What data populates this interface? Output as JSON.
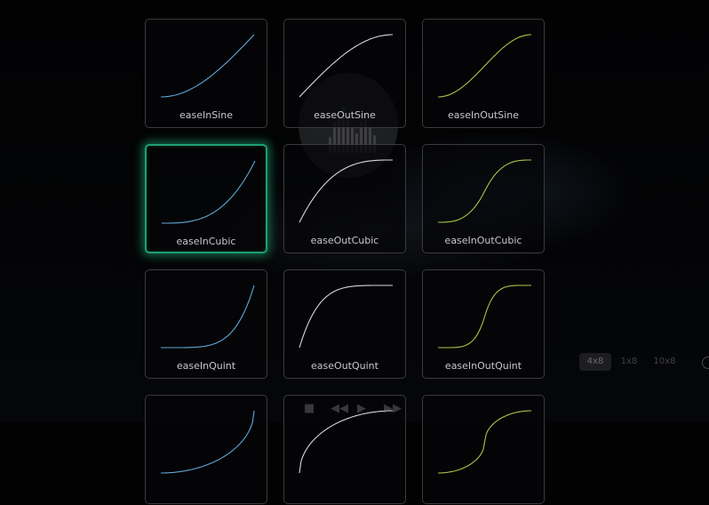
{
  "easing_grid": {
    "rows": [
      [
        {
          "label": "easeInSine",
          "curve": "easeInSine",
          "color": "#5fa8d8"
        },
        {
          "label": "easeOutSine",
          "curve": "easeOutSine",
          "color": "#d8d8dc"
        },
        {
          "label": "easeInOutSine",
          "curve": "easeInOutSine",
          "color": "#a9c548"
        }
      ],
      [
        {
          "label": "easeInCubic",
          "curve": "easeInCubic",
          "color": "#5fa8d8",
          "selected": true
        },
        {
          "label": "easeOutCubic",
          "curve": "easeOutCubic",
          "color": "#d8d8dc"
        },
        {
          "label": "easeInOutCubic",
          "curve": "easeInOutCubic",
          "color": "#a9c548"
        }
      ],
      [
        {
          "label": "easeInQuint",
          "curve": "easeInQuint",
          "color": "#5fa8d8"
        },
        {
          "label": "easeOutQuint",
          "curve": "easeOutQuint",
          "color": "#d8d8dc"
        },
        {
          "label": "easeInOutQuint",
          "curve": "easeInOutQuint",
          "color": "#a9c548"
        }
      ],
      [
        {
          "label": "",
          "curve": "easeInCirc",
          "color": "#5fa8d8"
        },
        {
          "label": "",
          "curve": "easeOutCirc",
          "color": "#d8d8dc"
        },
        {
          "label": "",
          "curve": "easeInOutCirc",
          "color": "#a9c548"
        }
      ]
    ]
  },
  "player": {
    "controls": [
      {
        "name": "stop-icon",
        "glyph": "■"
      },
      {
        "name": "rewind-icon",
        "glyph": "◀◀"
      },
      {
        "name": "play-icon",
        "glyph": "▶"
      },
      {
        "name": "forward-icon",
        "glyph": "▶▶"
      }
    ],
    "speeds": [
      {
        "label": "4x8",
        "selected": true
      },
      {
        "label": "1x8",
        "selected": false
      },
      {
        "label": "10x8",
        "selected": false
      }
    ]
  }
}
